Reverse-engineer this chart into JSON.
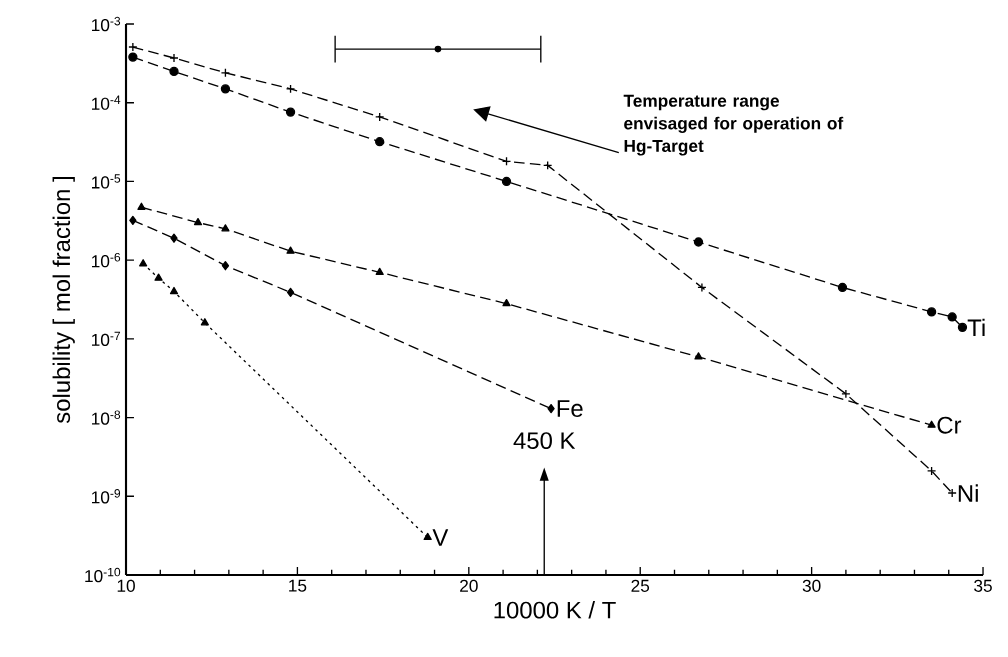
{
  "chart_data": {
    "type": "line",
    "xlabel": "10000 K / T",
    "ylabel": "solubility [ mol fraction ]",
    "log": "y",
    "grid": false,
    "xlim": [
      10,
      35
    ],
    "ylim": [
      1e-10,
      0.001
    ],
    "xticks": [
      10,
      15,
      20,
      25,
      30,
      35
    ],
    "yticks": [
      {
        "value": 1e-10,
        "label": "10$^{-10}$"
      },
      {
        "value": 1e-09,
        "label": "10$^{-9}$"
      },
      {
        "value": 1e-08,
        "label": "10$^{-8}$"
      },
      {
        "value": 1e-07,
        "label": "10$^{-7}$"
      },
      {
        "value": 1e-06,
        "label": "10$^{-6}$"
      },
      {
        "value": 1e-05,
        "label": "10$^{-5}$"
      },
      {
        "value": 0.0001,
        "label": "10$^{-4}$"
      },
      {
        "value": 0.001,
        "label": "10$^{-3}$"
      }
    ],
    "series": [
      {
        "name": "Ti",
        "color": "#000000",
        "marker": "circle",
        "line_style": "dashed",
        "x": [
          10.2,
          11.4,
          12.9,
          14.8,
          17.4,
          21.1,
          26.7,
          30.9,
          33.5,
          34.1,
          34.4
        ],
        "values": [
          0.00038,
          0.00025,
          0.00015,
          7.6e-05,
          3.2e-05,
          1e-05,
          1.7e-06,
          4.5e-07,
          2.2e-07,
          1.9e-07,
          1.4e-07
        ]
      },
      {
        "name": "Cr",
        "color": "#000000",
        "marker": "triangle",
        "line_style": "dashed",
        "x": [
          10.45,
          12.1,
          12.9,
          14.8,
          17.4,
          21.1,
          26.7,
          33.5
        ],
        "values": [
          4.7e-06,
          3e-06,
          2.5e-06,
          1.3e-06,
          7e-07,
          2.8e-07,
          5.9e-08,
          8e-09
        ]
      },
      {
        "name": "Ni",
        "color": "#000000",
        "marker": "cross",
        "line_style": "dashed",
        "x": [
          10.2,
          11.4,
          12.9,
          14.8,
          17.4,
          21.1,
          22.3,
          26.8,
          31.0,
          33.5,
          34.1
        ],
        "values": [
          0.00051,
          0.00037,
          0.00024,
          0.00015,
          6.6e-05,
          1.8e-05,
          1.6e-05,
          4.5e-07,
          2e-08,
          2.1e-09,
          1.1e-09
        ]
      },
      {
        "name": "Fe",
        "color": "#000000",
        "marker": "diamond",
        "line_style": "dashed",
        "x": [
          10.2,
          11.4,
          12.9,
          14.8,
          22.4
        ],
        "values": [
          3.2e-06,
          1.9e-06,
          8.5e-07,
          3.9e-07,
          1.3e-08
        ]
      },
      {
        "name": "V",
        "color": "#000000",
        "marker": "triangle",
        "line_style": "dotted",
        "x": [
          10.5,
          10.95,
          11.4,
          12.3,
          18.8
        ],
        "values": [
          9e-07,
          5.9e-07,
          4e-07,
          1.6e-07,
          3e-10
        ]
      },
      {
        "type": "scatter",
        "color": "#000000",
        "marker": "none",
        "x": [
          19.1
        ],
        "values": [
          0.00048
        ],
        "xerrors": [
          [
            16.1,
            22.1
          ]
        ]
      }
    ],
    "annotations": [
      "Temperature range envisaged for operation of Hg-Target"
    ],
    "ref_lines": [
      {
        "axis": "x",
        "value": 22.2,
        "label": "450 K"
      }
    ]
  }
}
